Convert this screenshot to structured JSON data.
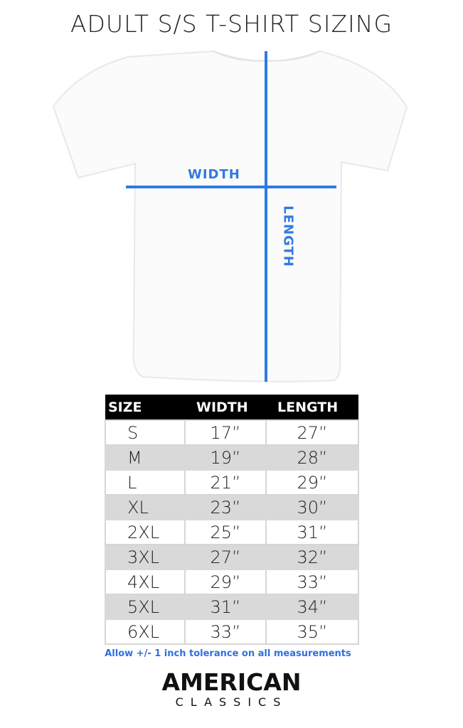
{
  "title": "ADULT S/S T-SHIRT SIZING",
  "diagram": {
    "width_label": "WIDTH",
    "length_label": "LENGTH",
    "line_color": "#2f7be0"
  },
  "table": {
    "headers": [
      "SIZE",
      "WIDTH",
      "LENGTH"
    ],
    "rows": [
      [
        "S",
        "17”",
        "27”"
      ],
      [
        "M",
        "19”",
        "28”"
      ],
      [
        "L",
        "21”",
        "29”"
      ],
      [
        "XL",
        "23”",
        "30”"
      ],
      [
        "2XL",
        "25”",
        "31”"
      ],
      [
        "3XL",
        "27”",
        "32”"
      ],
      [
        "4XL",
        "29”",
        "33”"
      ],
      [
        "5XL",
        "31”",
        "34”"
      ],
      [
        "6XL",
        "33”",
        "35”"
      ]
    ]
  },
  "note": "Allow +/- 1 inch tolerance on all measurements",
  "logo": {
    "line1": "AMERICAN",
    "line2": "CLASSICS"
  }
}
